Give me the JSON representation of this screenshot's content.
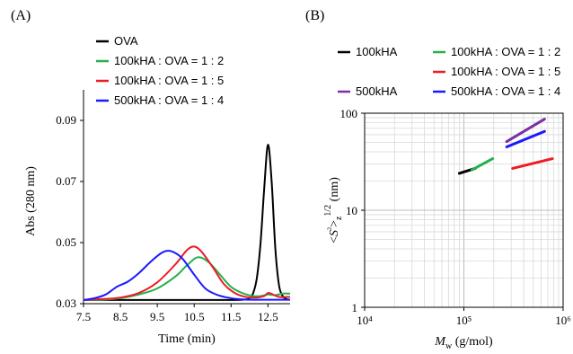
{
  "panel_a_label": "(A)",
  "panel_b_label": "(B)",
  "chart_data": [
    {
      "type": "line",
      "xlabel": "Time (min)",
      "ylabel": "Abs (280 nm)",
      "xlim": [
        7.5,
        13.1
      ],
      "ylim": [
        0.03,
        0.1
      ],
      "xticks": [
        "7.5",
        "8.5",
        "9.5",
        "10.5",
        "11.5",
        "12.5"
      ],
      "yticks": [
        "0.03",
        "0.05",
        "0.07",
        "0.09"
      ],
      "legend_position": "top-left",
      "series": [
        {
          "name": "OVA",
          "color": "#000000",
          "x": [
            7.5,
            8.0,
            9.0,
            10.0,
            11.0,
            11.8,
            12.0,
            12.1,
            12.2,
            12.3,
            12.4,
            12.5,
            12.6,
            12.7,
            12.8,
            12.9,
            13.0,
            13.1
          ],
          "y": [
            0.0312,
            0.0312,
            0.0312,
            0.0312,
            0.0312,
            0.0313,
            0.0318,
            0.0335,
            0.0385,
            0.05,
            0.068,
            0.082,
            0.07,
            0.048,
            0.036,
            0.0325,
            0.0315,
            0.0313
          ]
        },
        {
          "name": "100kHA : OVA = 1 : 2",
          "color": "#22b14c",
          "x": [
            7.5,
            8.0,
            8.5,
            9.0,
            9.5,
            10.0,
            10.3,
            10.6,
            10.9,
            11.2,
            11.5,
            11.8,
            12.1,
            12.3,
            12.5,
            12.7,
            12.9,
            13.1
          ],
          "y": [
            0.0312,
            0.0313,
            0.0318,
            0.033,
            0.035,
            0.039,
            0.0425,
            0.0452,
            0.0435,
            0.0395,
            0.0355,
            0.0335,
            0.0325,
            0.0325,
            0.033,
            0.0328,
            0.0333,
            0.0333
          ]
        },
        {
          "name": "100kHA : OVA = 1 : 5",
          "color": "#ed1c24",
          "x": [
            7.5,
            8.0,
            8.5,
            9.0,
            9.5,
            10.0,
            10.3,
            10.5,
            10.7,
            11.0,
            11.3,
            11.6,
            11.9,
            12.2,
            12.4,
            12.5,
            12.6,
            12.8,
            13.0,
            13.1
          ],
          "y": [
            0.0312,
            0.0315,
            0.032,
            0.0335,
            0.037,
            0.043,
            0.0475,
            0.0487,
            0.047,
            0.042,
            0.0365,
            0.0335,
            0.0322,
            0.032,
            0.0325,
            0.0335,
            0.0332,
            0.0322,
            0.0322,
            0.0322
          ]
        },
        {
          "name": "500kHA : OVA = 1 : 4",
          "color": "#1a1aff",
          "x": [
            7.5,
            7.8,
            8.1,
            8.4,
            8.7,
            9.0,
            9.3,
            9.6,
            9.8,
            10.0,
            10.2,
            10.5,
            10.8,
            11.1,
            11.4,
            11.7,
            12.0,
            12.3,
            12.6,
            12.9,
            13.1
          ],
          "y": [
            0.0312,
            0.0318,
            0.033,
            0.0355,
            0.0372,
            0.04,
            0.0435,
            0.0465,
            0.0473,
            0.0465,
            0.0445,
            0.0395,
            0.035,
            0.033,
            0.032,
            0.0315,
            0.0313,
            0.0313,
            0.0313,
            0.0313,
            0.0313
          ]
        }
      ]
    },
    {
      "type": "line",
      "log_x": true,
      "log_y": true,
      "xlabel": "Mw (g/mol)",
      "ylabel": "<S²>z^1/2 (nm)",
      "xlim": [
        10000,
        1000000
      ],
      "ylim": [
        1,
        100
      ],
      "xticks": [
        "10⁴",
        "10⁵",
        "10⁶"
      ],
      "yticks": [
        "1",
        "10",
        "100"
      ],
      "grid": true,
      "legend_position": "top",
      "series": [
        {
          "name": "100kHA",
          "color": "#000000",
          "x": [
            90000,
            130000
          ],
          "y": [
            24,
            27
          ]
        },
        {
          "name": "100kHA : OVA = 1 : 2",
          "color": "#22b14c",
          "x": [
            120000,
            195000
          ],
          "y": [
            26,
            34
          ]
        },
        {
          "name": "100kHA : OVA = 1 : 5",
          "color": "#ed1c24",
          "x": [
            310000,
            780000
          ],
          "y": [
            27,
            34
          ]
        },
        {
          "name": "500kHA",
          "color": "#7b2fa5",
          "x": [
            270000,
            650000
          ],
          "y": [
            51,
            87
          ]
        },
        {
          "name": "500kHA : OVA = 1 : 4",
          "color": "#1a1aff",
          "x": [
            270000,
            650000
          ],
          "y": [
            45,
            65
          ]
        }
      ]
    }
  ]
}
